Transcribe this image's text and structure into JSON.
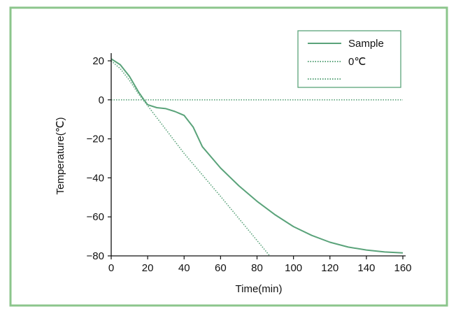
{
  "colors": {
    "frame_border": "#8cc68c",
    "series": "#5aa37a",
    "axis": "#111111"
  },
  "chart_data": {
    "type": "line",
    "title": "",
    "xlabel": "Time(min)",
    "ylabel": "Temperature(℃)",
    "xlim": [
      0,
      160
    ],
    "ylim": [
      -80,
      25
    ],
    "xticks": [
      0,
      20,
      40,
      60,
      80,
      100,
      120,
      140,
      160
    ],
    "yticks": [
      20,
      0,
      -20,
      -40,
      -60,
      -80
    ],
    "grid": false,
    "legend_position": "top-right",
    "series": [
      {
        "name": "Sample",
        "style": "solid",
        "x": [
          0,
          5,
          10,
          15,
          18,
          20,
          25,
          30,
          35,
          40,
          45,
          50,
          60,
          70,
          80,
          90,
          100,
          110,
          120,
          130,
          140,
          150,
          160
        ],
        "y": [
          21,
          18,
          12,
          4,
          0,
          -2.5,
          -4,
          -4.5,
          -6,
          -8,
          -14,
          -24,
          -35,
          -44,
          -52,
          -59,
          -65,
          -69.5,
          -73,
          -75.5,
          -77,
          -78,
          -78.5
        ]
      },
      {
        "name": "0℃",
        "style": "dotted",
        "x": [
          0,
          160
        ],
        "y": [
          0,
          0
        ]
      },
      {
        "name": "",
        "style": "dotted",
        "x": [
          0,
          5,
          10,
          15,
          20,
          40,
          60,
          87
        ],
        "y": [
          20,
          16,
          10,
          3,
          -3,
          -27.5,
          -49.5,
          -80
        ]
      }
    ]
  }
}
